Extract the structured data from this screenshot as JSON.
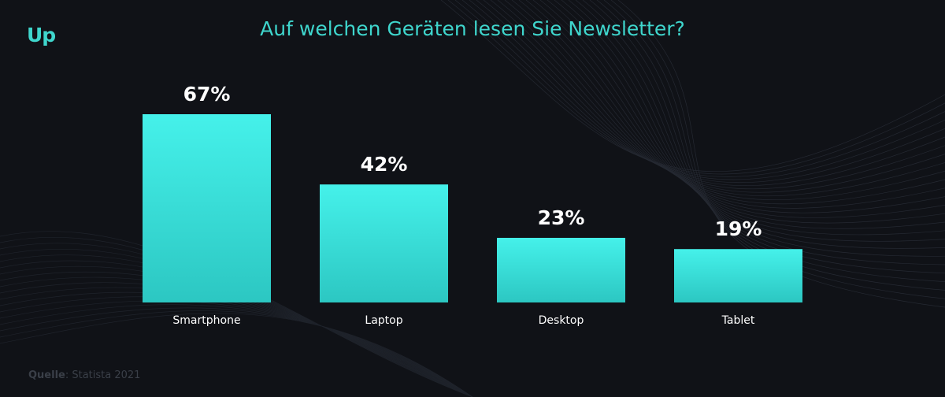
{
  "header": {
    "logo_text": "Up",
    "title": "Auf welchen Geräten lesen Sie Newsletter?"
  },
  "colors": {
    "background": "#101217",
    "accent": "#3fd6cd",
    "bar_top": "#45f1ea",
    "bar_bottom": "#2cc7c2",
    "value_text": "#ffffff",
    "category_text": "#ffffff",
    "source_text": "#3a3f48"
  },
  "chart_data": {
    "type": "bar",
    "title": "Auf welchen Geräten lesen Sie Newsletter?",
    "categories": [
      "Smartphone",
      "Laptop",
      "Desktop",
      "Tablet"
    ],
    "values": [
      67,
      42,
      23,
      19
    ],
    "value_labels": [
      "67%",
      "42%",
      "23%",
      "19%"
    ],
    "unit": "%",
    "ylim": [
      0,
      67
    ],
    "grid": false,
    "legend": "none"
  },
  "footer": {
    "source_label": "Quelle",
    "source_text": ": Statista 2021"
  }
}
